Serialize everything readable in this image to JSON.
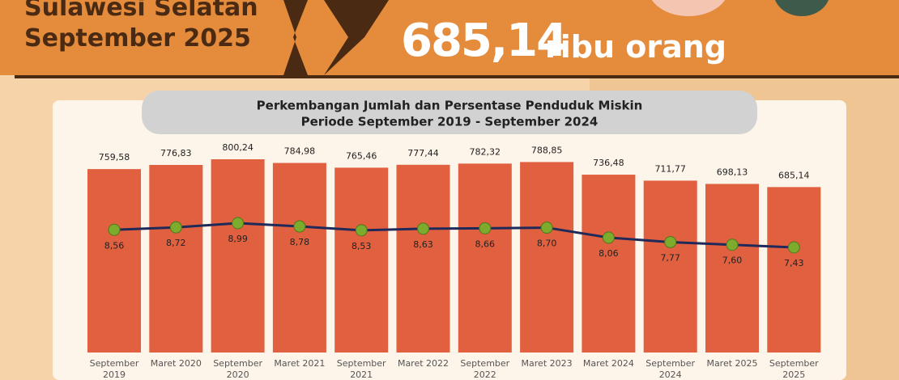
{
  "header": {
    "region": "Sulawesi Selatan",
    "period": "September 2025",
    "value": "685,14",
    "unit": "ribu orang"
  },
  "chart_data": {
    "type": "bar",
    "title": [
      "Perkembangan Jumlah dan Persentase Penduduk Miskin",
      "Periode September 2019 - September 2024"
    ],
    "categories": [
      "September 2019",
      "Maret 2020",
      "September 2020",
      "Maret 2021",
      "September 2021",
      "Maret 2022",
      "September 2022",
      "Maret 2023",
      "Maret 2024",
      "September 2024",
      "Maret 2025",
      "September 2025"
    ],
    "series": [
      {
        "color": "#e0603f",
        "values": [
          759.58,
          776.83,
          800.24,
          784.98,
          765.46,
          777.44,
          782.32,
          788.85,
          736.48,
          711.77,
          698.13,
          685.14
        ],
        "value_labels": [
          "759,58",
          "776,83",
          "800,24",
          "784,98",
          "765,46",
          "777,44",
          "782,32",
          "788,85",
          "736,48",
          "711,77",
          "698,13",
          "685,14"
        ]
      },
      {
        "type": "line",
        "axis": "y2",
        "color": "#1f2a5a",
        "values": [
          8.56,
          8.72,
          8.99,
          8.78,
          8.53,
          8.63,
          8.66,
          8.7,
          8.06,
          7.77,
          7.6,
          7.43
        ],
        "value_labels": [
          "8,56",
          "8,72",
          "8,99",
          "8,78",
          "8,53",
          "8,63",
          "8,66",
          "8,70",
          "8,06",
          "7,77",
          "7,60",
          "7,43"
        ]
      }
    ]
  }
}
